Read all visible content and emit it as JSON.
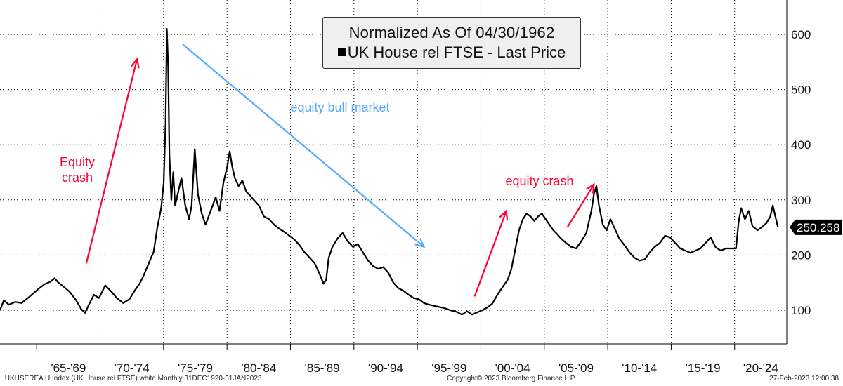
{
  "chart_data": {
    "type": "line",
    "title": "Normalized As Of 04/30/1962",
    "xlim": [
      1962.0,
      2024.0
    ],
    "ylim": [
      40,
      640
    ],
    "y_ticks": [
      100,
      200,
      300,
      400,
      500,
      600
    ],
    "grid": true,
    "x_tick_labels": [
      "'65-'69",
      "'70-'74",
      "'75-'79",
      "'80-'84",
      "'85-'89",
      "'90-'94",
      "'95-'99",
      "'00-'04",
      "'05-'09",
      "'10-'14",
      "'15-'19",
      "'20-'24"
    ],
    "x_period_starts": [
      1965,
      1970,
      1975,
      1980,
      1985,
      1990,
      1995,
      2000,
      2005,
      2010,
      2015,
      2020,
      2025
    ],
    "series": [
      {
        "name": "UK House rel FTSE - Last Price",
        "color": "#000000",
        "last_value_label": "250.258",
        "points": [
          [
            1962.0,
            100
          ],
          [
            1962.3,
            118
          ],
          [
            1962.7,
            110
          ],
          [
            1963.2,
            115
          ],
          [
            1963.7,
            113
          ],
          [
            1964.2,
            122
          ],
          [
            1964.6,
            130
          ],
          [
            1965.0,
            138
          ],
          [
            1965.5,
            147
          ],
          [
            1966.0,
            152
          ],
          [
            1966.3,
            158
          ],
          [
            1966.6,
            150
          ],
          [
            1967.0,
            143
          ],
          [
            1967.5,
            133
          ],
          [
            1968.0,
            118
          ],
          [
            1968.4,
            102
          ],
          [
            1968.7,
            95
          ],
          [
            1969.0,
            110
          ],
          [
            1969.4,
            128
          ],
          [
            1969.8,
            122
          ],
          [
            1970.3,
            145
          ],
          [
            1970.8,
            133
          ],
          [
            1971.2,
            122
          ],
          [
            1971.7,
            113
          ],
          [
            1972.2,
            120
          ],
          [
            1972.6,
            135
          ],
          [
            1973.0,
            148
          ],
          [
            1973.3,
            162
          ],
          [
            1973.6,
            178
          ],
          [
            1973.9,
            195
          ],
          [
            1974.1,
            205
          ],
          [
            1974.4,
            250
          ],
          [
            1974.7,
            285
          ],
          [
            1974.9,
            330
          ],
          [
            1975.05,
            440
          ],
          [
            1975.15,
            610
          ],
          [
            1975.25,
            540
          ],
          [
            1975.35,
            380
          ],
          [
            1975.5,
            300
          ],
          [
            1975.65,
            350
          ],
          [
            1975.8,
            290
          ],
          [
            1976.0,
            310
          ],
          [
            1976.3,
            340
          ],
          [
            1976.6,
            290
          ],
          [
            1976.9,
            265
          ],
          [
            1977.1,
            290
          ],
          [
            1977.35,
            392
          ],
          [
            1977.6,
            310
          ],
          [
            1977.9,
            275
          ],
          [
            1978.2,
            255
          ],
          [
            1978.6,
            280
          ],
          [
            1979.0,
            305
          ],
          [
            1979.3,
            280
          ],
          [
            1979.6,
            330
          ],
          [
            1979.9,
            360
          ],
          [
            1980.1,
            388
          ],
          [
            1980.3,
            360
          ],
          [
            1980.5,
            340
          ],
          [
            1980.8,
            325
          ],
          [
            1981.1,
            335
          ],
          [
            1981.4,
            315
          ],
          [
            1981.7,
            308
          ],
          [
            1982.0,
            300
          ],
          [
            1982.4,
            290
          ],
          [
            1982.8,
            270
          ],
          [
            1983.2,
            265
          ],
          [
            1983.6,
            255
          ],
          [
            1984.0,
            248
          ],
          [
            1984.4,
            242
          ],
          [
            1984.8,
            235
          ],
          [
            1985.2,
            228
          ],
          [
            1985.6,
            218
          ],
          [
            1986.0,
            205
          ],
          [
            1986.4,
            195
          ],
          [
            1986.8,
            185
          ],
          [
            1987.2,
            165
          ],
          [
            1987.5,
            148
          ],
          [
            1987.7,
            155
          ],
          [
            1987.9,
            195
          ],
          [
            1988.2,
            215
          ],
          [
            1988.6,
            230
          ],
          [
            1989.0,
            240
          ],
          [
            1989.4,
            225
          ],
          [
            1989.8,
            215
          ],
          [
            1990.2,
            220
          ],
          [
            1990.6,
            205
          ],
          [
            1991.0,
            190
          ],
          [
            1991.4,
            180
          ],
          [
            1991.8,
            175
          ],
          [
            1992.2,
            178
          ],
          [
            1992.6,
            168
          ],
          [
            1993.0,
            150
          ],
          [
            1993.4,
            140
          ],
          [
            1993.8,
            135
          ],
          [
            1994.2,
            128
          ],
          [
            1994.6,
            122
          ],
          [
            1995.0,
            120
          ],
          [
            1995.4,
            113
          ],
          [
            1995.8,
            110
          ],
          [
            1996.2,
            108
          ],
          [
            1996.6,
            106
          ],
          [
            1997.0,
            104
          ],
          [
            1997.5,
            100
          ],
          [
            1998.0,
            97
          ],
          [
            1998.4,
            92
          ],
          [
            1998.8,
            98
          ],
          [
            1999.2,
            92
          ],
          [
            1999.6,
            96
          ],
          [
            2000.0,
            100
          ],
          [
            2000.4,
            105
          ],
          [
            2000.8,
            112
          ],
          [
            2001.2,
            128
          ],
          [
            2001.6,
            142
          ],
          [
            2002.0,
            155
          ],
          [
            2002.3,
            175
          ],
          [
            2002.6,
            210
          ],
          [
            2002.9,
            245
          ],
          [
            2003.2,
            265
          ],
          [
            2003.5,
            275
          ],
          [
            2003.8,
            270
          ],
          [
            2004.1,
            262
          ],
          [
            2004.4,
            270
          ],
          [
            2004.7,
            275
          ],
          [
            2005.0,
            265
          ],
          [
            2005.3,
            255
          ],
          [
            2005.6,
            245
          ],
          [
            2005.9,
            238
          ],
          [
            2006.2,
            230
          ],
          [
            2006.6,
            222
          ],
          [
            2007.0,
            215
          ],
          [
            2007.4,
            212
          ],
          [
            2007.8,
            225
          ],
          [
            2008.2,
            240
          ],
          [
            2008.6,
            280
          ],
          [
            2008.8,
            310
          ],
          [
            2009.0,
            325
          ],
          [
            2009.2,
            290
          ],
          [
            2009.5,
            255
          ],
          [
            2009.8,
            245
          ],
          [
            2010.1,
            265
          ],
          [
            2010.4,
            250
          ],
          [
            2010.8,
            230
          ],
          [
            2011.2,
            218
          ],
          [
            2011.6,
            205
          ],
          [
            2012.0,
            195
          ],
          [
            2012.4,
            190
          ],
          [
            2012.8,
            192
          ],
          [
            2013.2,
            205
          ],
          [
            2013.6,
            215
          ],
          [
            2014.0,
            222
          ],
          [
            2014.4,
            235
          ],
          [
            2014.8,
            232
          ],
          [
            2015.2,
            222
          ],
          [
            2015.6,
            212
          ],
          [
            2016.0,
            208
          ],
          [
            2016.4,
            204
          ],
          [
            2016.8,
            208
          ],
          [
            2017.2,
            212
          ],
          [
            2017.6,
            222
          ],
          [
            2018.0,
            232
          ],
          [
            2018.4,
            214
          ],
          [
            2018.8,
            208
          ],
          [
            2019.2,
            212
          ],
          [
            2019.6,
            212
          ],
          [
            2020.0,
            212
          ],
          [
            2020.2,
            260
          ],
          [
            2020.4,
            285
          ],
          [
            2020.7,
            265
          ],
          [
            2021.0,
            280
          ],
          [
            2021.3,
            252
          ],
          [
            2021.7,
            245
          ],
          [
            2022.0,
            250
          ],
          [
            2022.4,
            258
          ],
          [
            2022.7,
            270
          ],
          [
            2022.9,
            290
          ],
          [
            2023.1,
            270
          ],
          [
            2023.3,
            250.258
          ]
        ]
      }
    ],
    "annotations": [
      {
        "text_lines": [
          "Equity",
          "crash"
        ],
        "color": "#ff0033",
        "arrow": [
          [
            1968.8,
            185
          ],
          [
            1972.8,
            555
          ]
        ]
      },
      {
        "text_lines": [
          "equity bull market"
        ],
        "color": "#55aaff",
        "arrow": [
          [
            1976.4,
            582
          ],
          [
            1995.4,
            215
          ]
        ]
      },
      {
        "text_lines": [
          ""
        ],
        "color": "#ff0033",
        "arrow": [
          [
            1999.4,
            125
          ],
          [
            2001.9,
            280
          ]
        ]
      },
      {
        "text_lines": [
          "equity crash"
        ],
        "color": "#ff0033",
        "arrow": [
          [
            2006.7,
            250
          ],
          [
            2008.8,
            328
          ]
        ]
      }
    ]
  },
  "legend": {
    "title": "Normalized As Of 04/30/1962",
    "series_label": "UK House rel FTSE - Last Price"
  },
  "footer": {
    "left": ".UKHSEREA U Index (UK House rel FTSE) white  Monthly 31DEC1920-31JAN2023",
    "center": "Copyright© 2023 Bloomberg Finance L.P.",
    "right": "27-Feb-2023 12:00:38"
  }
}
